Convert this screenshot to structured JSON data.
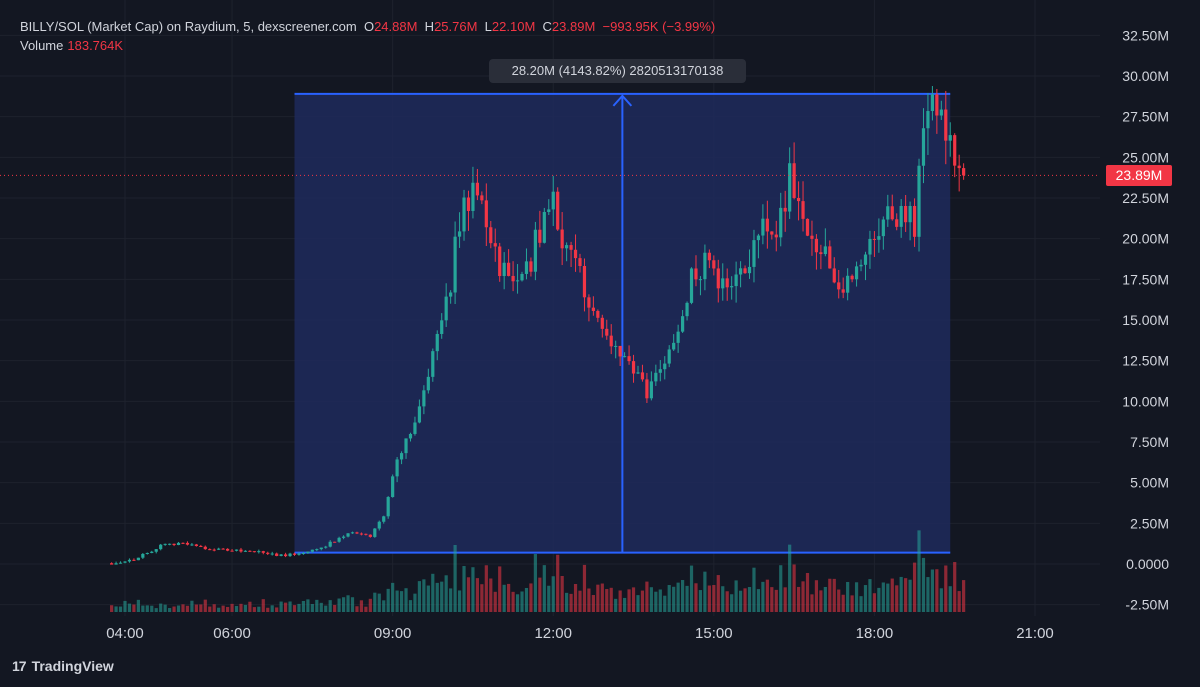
{
  "header": {
    "symbol": "BILLY/SOL (Market Cap) on Raydium, 5, dexscreener.com",
    "open_label": "O",
    "open": "24.88M",
    "high_label": "H",
    "high": "25.76M",
    "low_label": "L",
    "low": "22.10M",
    "close_label": "C",
    "close": "23.89M",
    "change": "−993.95K (−3.99%)",
    "volume_label": "Volume",
    "volume": "183.764K"
  },
  "measure": {
    "tooltip": "28.20M (4143.82%) 2820513170138"
  },
  "price_tag": "23.89M",
  "brand": {
    "logo": "17",
    "name": "TradingView"
  },
  "colors": {
    "background": "#131722",
    "up": "#26a69a",
    "down": "#f23645",
    "measure_fill": "#1f2a5c",
    "measure_line": "#2962ff"
  },
  "chart_data": {
    "type": "candlestick",
    "y_axis_ticks": [
      "32.50M",
      "30.00M",
      "27.50M",
      "25.00M",
      "22.50M",
      "20.00M",
      "17.50M",
      "15.00M",
      "12.50M",
      "10.00M",
      "7.50M",
      "5.00M",
      "2.50M",
      "0.0000",
      "-2.50M"
    ],
    "x_axis_ticks": [
      "04:00",
      "06:00",
      "09:00",
      "12:00",
      "15:00",
      "18:00",
      "21:00"
    ],
    "ylim": [
      -2.5,
      32.5
    ],
    "x_range": [
      "03:30",
      "21:30"
    ],
    "last_price": 23.89,
    "measure": {
      "x_start": "07:10",
      "x_end": "19:25",
      "y_low": 0.7,
      "y_high": 28.9
    },
    "trend_points": [
      [
        "03:45",
        0.05
      ],
      [
        "04:10",
        0.3
      ],
      [
        "04:40",
        1.1
      ],
      [
        "05:00",
        1.3
      ],
      [
        "05:40",
        0.9
      ],
      [
        "06:20",
        0.8
      ],
      [
        "07:00",
        0.5
      ],
      [
        "07:40",
        1.0
      ],
      [
        "08:10",
        1.9
      ],
      [
        "08:35",
        1.7
      ],
      [
        "08:50",
        3.0
      ],
      [
        "09:05",
        6.5
      ],
      [
        "09:30",
        9.5
      ],
      [
        "09:50",
        14.0
      ],
      [
        "10:05",
        17.0
      ],
      [
        "10:15",
        21.5
      ],
      [
        "10:30",
        23.0
      ],
      [
        "10:40",
        22.0
      ],
      [
        "10:55",
        19.0
      ],
      [
        "11:10",
        17.5
      ],
      [
        "11:30",
        18.0
      ],
      [
        "11:50",
        21.5
      ],
      [
        "12:00",
        22.0
      ],
      [
        "12:15",
        19.0
      ],
      [
        "12:35",
        17.0
      ],
      [
        "12:55",
        14.5
      ],
      [
        "13:15",
        12.5
      ],
      [
        "13:30",
        12.0
      ],
      [
        "13:45",
        10.5
      ],
      [
        "14:00",
        12.0
      ],
      [
        "14:15",
        14.0
      ],
      [
        "14:35",
        17.5
      ],
      [
        "14:50",
        18.5
      ],
      [
        "15:10",
        17.5
      ],
      [
        "15:35",
        17.5
      ],
      [
        "15:55",
        21.0
      ],
      [
        "16:10",
        21.0
      ],
      [
        "16:25",
        23.5
      ],
      [
        "16:45",
        21.0
      ],
      [
        "17:10",
        18.5
      ],
      [
        "17:30",
        17.0
      ],
      [
        "17:45",
        18.5
      ],
      [
        "18:05",
        21.0
      ],
      [
        "18:30",
        22.0
      ],
      [
        "18:45",
        21.0
      ],
      [
        "19:00",
        28.5
      ],
      [
        "19:15",
        27.0
      ],
      [
        "19:30",
        25.5
      ],
      [
        "19:40",
        23.89
      ]
    ]
  }
}
